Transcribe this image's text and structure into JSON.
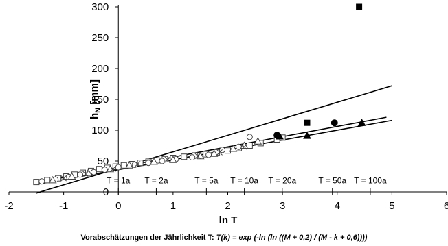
{
  "chart_data": {
    "type": "scatter",
    "xlabel": "ln T",
    "ylabel_main": "h",
    "ylabel_sub": "N",
    "ylabel_unit": " [mm]",
    "caption_prefix": "Vorabschätzungen der Jährlichkeit T:  ",
    "caption_formula": "T(k) = exp (-ln (ln ((M + 0,2) / (M - k + 0,6))))",
    "xlim": [
      -2,
      6
    ],
    "ylim": [
      0,
      300
    ],
    "xticks": [
      -2,
      -1,
      0,
      1,
      2,
      3,
      4,
      5,
      6
    ],
    "yticks": [
      0,
      50,
      100,
      150,
      200,
      250,
      300
    ],
    "grid": false,
    "return_period_labels": [
      {
        "text": "T = 1a",
        "x": 0
      },
      {
        "text": "T = 2a",
        "x": 0.693
      },
      {
        "text": "T = 5a",
        "x": 1.609
      },
      {
        "text": "T = 10a",
        "x": 2.303
      },
      {
        "text": "T = 20a",
        "x": 2.996
      },
      {
        "text": "T = 50a",
        "x": 3.912
      },
      {
        "text": "T = 100a",
        "x": 4.605
      }
    ],
    "series": [
      {
        "marker": "square-open",
        "points": [
          [
            -1.5,
            16
          ],
          [
            -1.3,
            19
          ],
          [
            -1.1,
            22
          ],
          [
            -0.95,
            25
          ],
          [
            -0.8,
            28
          ],
          [
            -0.65,
            31
          ],
          [
            -0.5,
            34
          ],
          [
            -0.35,
            37
          ],
          [
            -0.2,
            39
          ],
          [
            -0.05,
            41
          ],
          [
            0.1,
            43
          ],
          [
            0.25,
            45
          ],
          [
            0.4,
            47
          ],
          [
            0.55,
            49
          ],
          [
            0.7,
            51
          ],
          [
            0.85,
            53
          ],
          [
            1.0,
            55
          ],
          [
            1.2,
            57
          ],
          [
            1.4,
            59
          ],
          [
            1.6,
            61
          ],
          [
            1.8,
            64
          ],
          [
            2.0,
            67
          ],
          [
            2.2,
            71
          ],
          [
            2.4,
            75
          ],
          [
            2.6,
            79
          ],
          [
            2.9,
            85
          ],
          [
            3.0,
            88
          ]
        ]
      },
      {
        "marker": "circle-open",
        "points": [
          [
            -1.4,
            17
          ],
          [
            -1.15,
            20
          ],
          [
            -0.9,
            24
          ],
          [
            -0.7,
            28
          ],
          [
            -0.45,
            32
          ],
          [
            -0.25,
            36
          ],
          [
            0.0,
            40
          ],
          [
            0.3,
            44
          ],
          [
            0.55,
            47
          ],
          [
            0.8,
            50
          ],
          [
            1.05,
            53
          ],
          [
            1.35,
            56
          ],
          [
            1.65,
            60
          ],
          [
            1.9,
            68
          ],
          [
            2.2,
            73
          ],
          [
            2.4,
            89
          ]
        ]
      },
      {
        "marker": "triangle-open",
        "points": [
          [
            -1.2,
            19
          ],
          [
            -0.85,
            25
          ],
          [
            -0.55,
            31
          ],
          [
            -0.15,
            37
          ],
          [
            0.2,
            43
          ],
          [
            0.65,
            49
          ],
          [
            1.0,
            52
          ],
          [
            1.5,
            58
          ],
          [
            1.75,
            62
          ],
          [
            2.1,
            70
          ],
          [
            2.3,
            75
          ],
          [
            2.55,
            82
          ]
        ]
      },
      {
        "marker": "cross",
        "points": [
          [
            -1.0,
            22
          ],
          [
            -0.6,
            29
          ],
          [
            -0.1,
            37
          ],
          [
            0.35,
            45
          ],
          [
            0.9,
            52
          ],
          [
            1.45,
            58
          ],
          [
            1.85,
            64
          ],
          [
            2.3,
            73
          ]
        ]
      },
      {
        "marker": "square-filled",
        "points": [
          [
            3.45,
            112
          ],
          [
            4.4,
            300
          ]
        ]
      },
      {
        "marker": "circle-filled",
        "points": [
          [
            2.9,
            92
          ],
          [
            3.95,
            112
          ]
        ]
      },
      {
        "marker": "triangle-filled",
        "points": [
          [
            2.95,
            90
          ],
          [
            3.45,
            91
          ],
          [
            4.45,
            112
          ]
        ]
      }
    ],
    "fit_lines": [
      {
        "x": [
          -1.5,
          5.0
        ],
        "y": [
          -2,
          172
        ]
      },
      {
        "x": [
          -1.5,
          5.0
        ],
        "y": [
          12,
          116
        ]
      },
      {
        "x": [
          -1.5,
          4.9
        ],
        "y": [
          15,
          121
        ]
      }
    ],
    "colors": {
      "axis": "#000000",
      "marker": "#444444",
      "line": "#000000",
      "background": "#ffffff"
    }
  }
}
